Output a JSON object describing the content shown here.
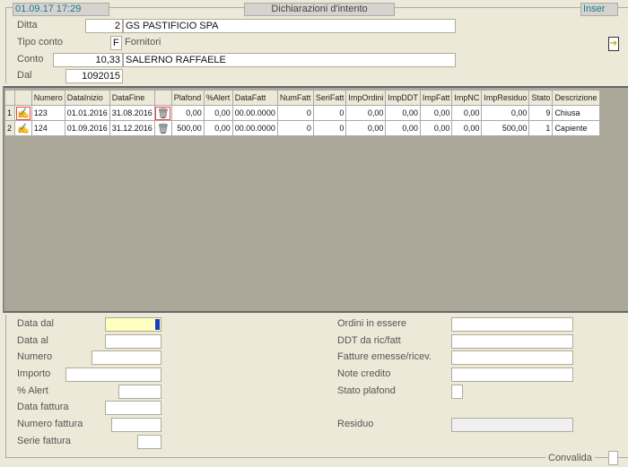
{
  "header": {
    "datetime": "01.09.17 17:29",
    "title": "Dichiarazioni d'intento",
    "mode": "Inser"
  },
  "filters": {
    "ditta": {
      "label": "Ditta",
      "code": "2",
      "name": "GS PASTIFICIO SPA"
    },
    "tipo_conto": {
      "label": "Tipo conto",
      "code": "F",
      "name": "Fornitori"
    },
    "conto": {
      "label": "Conto",
      "code": "10,33",
      "name": "SALERNO RAFFAELE"
    },
    "dal": {
      "label": "Dal",
      "value": "1092015"
    }
  },
  "grid": {
    "columns": [
      "",
      "",
      "Numero",
      "DataInizio",
      "DataFine",
      "",
      "Plafond",
      "%Alert",
      "DataFatt",
      "NumFatt",
      "SeriFatt",
      "ImpOrdini",
      "ImpDDT",
      "ImpFatt",
      "ImpNC",
      "ImpResiduo",
      "Stato",
      "Descrizione"
    ],
    "rows": [
      {
        "n": "1",
        "numero": "123",
        "inizio": "01.01.2016",
        "fine": "31.08.2016",
        "plafond": "0,00",
        "alert": "0,00",
        "datafatt": "00.00.0000",
        "numfatt": "0",
        "serifatt": "0",
        "ordini": "0,00",
        "ddt": "0,00",
        "fatt": "0,00",
        "nc": "0,00",
        "residuo": "0,00",
        "stato": "9",
        "descr": "Chiusa"
      },
      {
        "n": "2",
        "numero": "124",
        "inizio": "01.09.2016",
        "fine": "31.12.2016",
        "plafond": "500,00",
        "alert": "0,00",
        "datafatt": "00.00.0000",
        "numfatt": "0",
        "serifatt": "0",
        "ordini": "0,00",
        "ddt": "0,00",
        "fatt": "0,00",
        "nc": "0,00",
        "residuo": "500,00",
        "stato": "1",
        "descr": "Capiente"
      }
    ]
  },
  "detail": {
    "left": [
      {
        "label": "Data dal",
        "value": ""
      },
      {
        "label": "Data al",
        "value": ""
      },
      {
        "label": "Numero",
        "value": ""
      },
      {
        "label": "Importo",
        "value": ""
      },
      {
        "label": "% Alert",
        "value": ""
      },
      {
        "label": "Data fattura",
        "value": ""
      },
      {
        "label": "Numero fattura",
        "value": ""
      },
      {
        "label": "Serie fattura",
        "value": ""
      }
    ],
    "right": [
      {
        "label": "Ordini in essere",
        "value": ""
      },
      {
        "label": "DDT da ric/fatt",
        "value": ""
      },
      {
        "label": "Fatture emesse/ricev.",
        "value": ""
      },
      {
        "label": "Note credito",
        "value": ""
      },
      {
        "label": "Stato plafond",
        "value": ""
      },
      {
        "label": "Residuo",
        "value": ""
      }
    ],
    "convalida": "Convalida"
  }
}
